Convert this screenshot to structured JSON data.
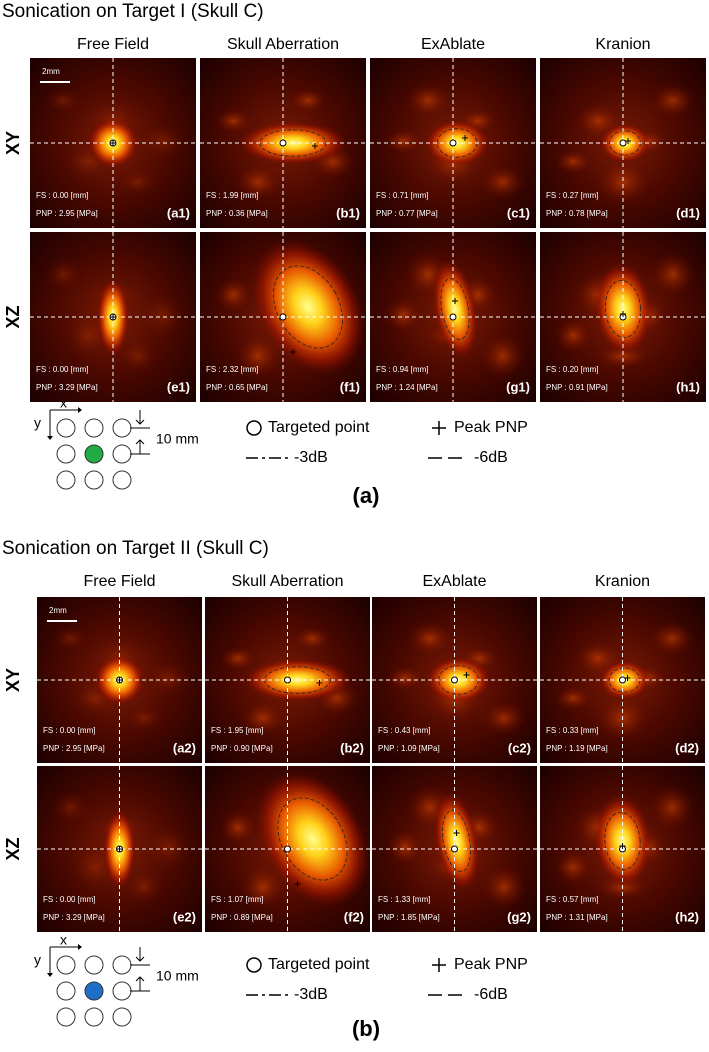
{
  "panels": [
    {
      "title": "Sonication on Target I (Skull C)",
      "label": "(a)",
      "columns": [
        "Free Field",
        "Skull Aberration",
        "ExAblate",
        "Kranion"
      ],
      "rows": [
        "XY",
        "XZ"
      ],
      "scale": "2mm",
      "tiles": [
        [
          {
            "id": "(a1)",
            "fs": "FS    : 0.00 [mm]",
            "pnp": "PNP : 2.95 [MPa]"
          },
          {
            "id": "(b1)",
            "fs": "FS    : 1.99 [mm]",
            "pnp": "PNP : 0.36 [MPa]"
          },
          {
            "id": "(c1)",
            "fs": "FS    : 0.71 [mm]",
            "pnp": "PNP : 0.77 [MPa]"
          },
          {
            "id": "(d1)",
            "fs": "FS    : 0.27 [mm]",
            "pnp": "PNP : 0.78 [MPa]"
          }
        ],
        [
          {
            "id": "(e1)",
            "fs": "FS    : 0.00 [mm]",
            "pnp": "PNP : 3.29 [MPa]"
          },
          {
            "id": "(f1)",
            "fs": "FS    : 2.32 [mm]",
            "pnp": "PNP : 0.65 [MPa]"
          },
          {
            "id": "(g1)",
            "fs": "FS    : 0.94 [mm]",
            "pnp": "PNP : 1.24 [MPa]"
          },
          {
            "id": "(h1)",
            "fs": "FS    : 0.20 [mm]",
            "pnp": "PNP : 0.91 [MPa]"
          }
        ]
      ],
      "legend": {
        "x": "x",
        "y": "y",
        "spacing": "10 mm",
        "target": "Targeted point",
        "peak": "Peak PNP",
        "db3": "-3dB",
        "db6": "-6dB"
      }
    },
    {
      "title": "Sonication on Target II (Skull C)",
      "label": "(b)",
      "columns": [
        "Free Field",
        "Skull Aberration",
        "ExAblate",
        "Kranion"
      ],
      "rows": [
        "XY",
        "XZ"
      ],
      "scale": "2mm",
      "tiles": [
        [
          {
            "id": "(a2)",
            "fs": "FS    : 0.00 [mm]",
            "pnp": "PNP : 2.95 [MPa]"
          },
          {
            "id": "(b2)",
            "fs": "FS    : 1.95 [mm]",
            "pnp": "PNP : 0.90 [MPa]"
          },
          {
            "id": "(c2)",
            "fs": "FS    : 0.43 [mm]",
            "pnp": "PNP : 1.09 [MPa]"
          },
          {
            "id": "(d2)",
            "fs": "FS    : 0.33 [mm]",
            "pnp": "PNP : 1.19 [MPa]"
          }
        ],
        [
          {
            "id": "(e2)",
            "fs": "FS    : 0.00 [mm]",
            "pnp": "PNP : 3.29 [MPa]"
          },
          {
            "id": "(f2)",
            "fs": "FS    : 1.07 [mm]",
            "pnp": "PNP : 0.89 [MPa]"
          },
          {
            "id": "(g2)",
            "fs": "FS    : 1.33 [mm]",
            "pnp": "PNP : 1.85 [MPa]"
          },
          {
            "id": "(h2)",
            "fs": "FS    : 0.57 [mm]",
            "pnp": "PNP : 1.31 [MPa]"
          }
        ]
      ],
      "legend": {
        "x": "x",
        "y": "y",
        "spacing": "10 mm",
        "target": "Targeted point",
        "peak": "Peak PNP",
        "db3": "-3dB",
        "db6": "-6dB"
      }
    }
  ]
}
